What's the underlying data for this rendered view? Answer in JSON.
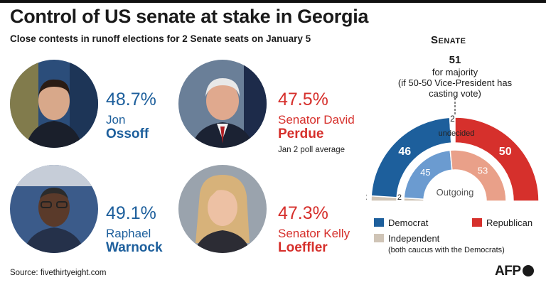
{
  "title": "Control of US senate at stake in Georgia",
  "subtitle": "Close contests in runoff elections for 2 Senate seats on January 5",
  "candidates": [
    {
      "pct": "48.7%",
      "first": "Jon",
      "last": "Ossoff",
      "party": "dem",
      "note": ""
    },
    {
      "pct": "47.5%",
      "first": "Senator David",
      "last": "Perdue",
      "party": "rep",
      "note": "Jan 2 poll average"
    },
    {
      "pct": "49.1%",
      "first": "Raphael",
      "last": "Warnock",
      "party": "dem",
      "note": ""
    },
    {
      "pct": "47.3%",
      "first": "Senator Kelly",
      "last": "Loeffler",
      "party": "rep",
      "note": ""
    }
  ],
  "senate": {
    "title": "Senate",
    "majority_num": "51",
    "majority_text": "for majority",
    "majority_note": "(if 50-50 Vice-President has casting vote)",
    "undecided_label": "undecided",
    "outgoing_label": "Outgoing"
  },
  "legend": {
    "democrat": "Democrat",
    "republican": "Republican",
    "independent": "Independent",
    "independent_note": "(both caucus with the Democrats)"
  },
  "source": "Source:  fivethirtyeight.com",
  "logo": "AFP",
  "colors": {
    "democrat": "#1d5f9c",
    "democrat_light": "#6b9bd0",
    "republican": "#d6302c",
    "republican_light": "#e9a089",
    "independent": "#cfc4b6",
    "undecided": "#ffffff"
  },
  "chart_data": {
    "type": "pie",
    "subtype": "parliament-half-donut",
    "total_seats": 100,
    "series": [
      {
        "name": "Senate",
        "slices": [
          {
            "label": "Independent",
            "value": 2
          },
          {
            "label": "Democrat",
            "value": 46
          },
          {
            "label": "undecided",
            "value": 2
          },
          {
            "label": "Republican",
            "value": 50
          }
        ]
      },
      {
        "name": "Outgoing",
        "slices": [
          {
            "label": "Independent",
            "value": 2
          },
          {
            "label": "Democrat",
            "value": 45
          },
          {
            "label": "Republican",
            "value": 53
          }
        ]
      }
    ]
  }
}
